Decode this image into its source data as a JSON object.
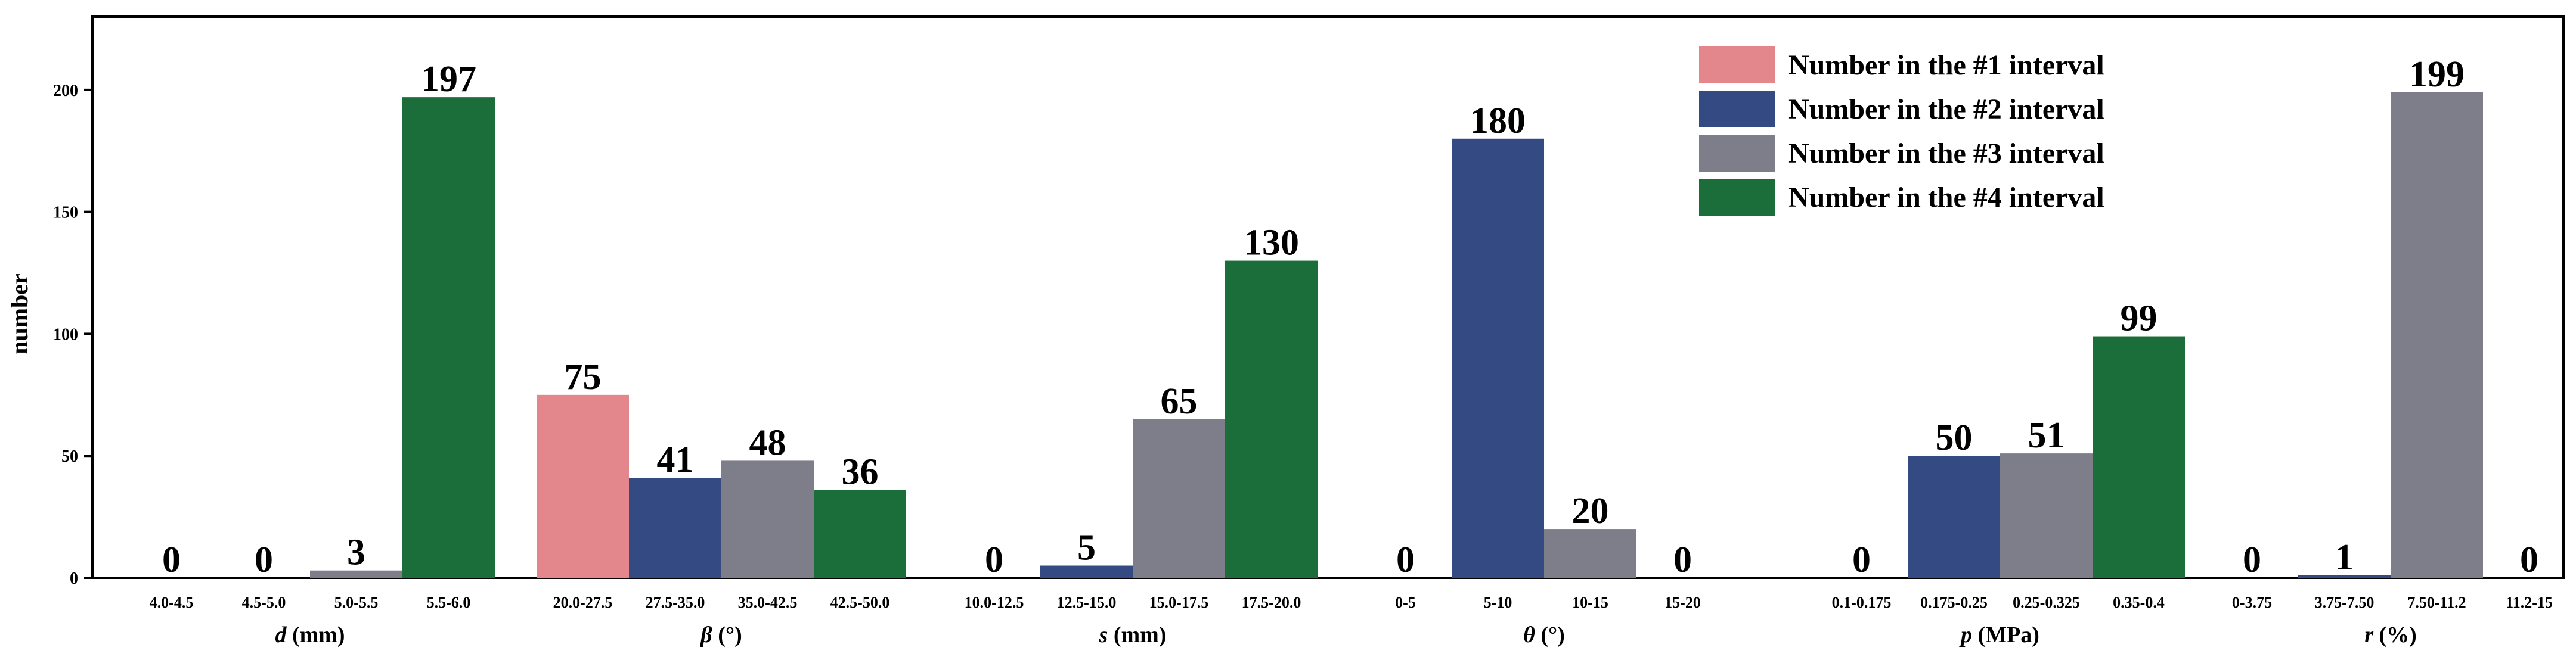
{
  "chart_data": {
    "type": "bar",
    "ylabel": "number",
    "ylim": [
      0,
      230
    ],
    "yticks": [
      0,
      50,
      100,
      150,
      200
    ],
    "grid": false,
    "legend_position": "top-right",
    "series": [
      {
        "name": "Number in the #1 interval",
        "color": "#e3878c"
      },
      {
        "name": "Number in the #2 interval",
        "color": "#344a82"
      },
      {
        "name": "Number in the #3 interval",
        "color": "#7e7e8a"
      },
      {
        "name": "Number in the #4 interval",
        "color": "#1b6e3a"
      }
    ],
    "groups": [
      {
        "label_var": "d",
        "label_unit": " (mm)",
        "bars": [
          {
            "category": "4.0-4.5",
            "value": 0,
            "series": 0
          },
          {
            "category": "4.5-5.0",
            "value": 0,
            "series": 1
          },
          {
            "category": "5.0-5.5",
            "value": 3,
            "series": 2
          },
          {
            "category": "5.5-6.0",
            "value": 197,
            "series": 3
          }
        ]
      },
      {
        "label_var": "β",
        "label_unit": " (°)",
        "bars": [
          {
            "category": "20.0-27.5",
            "value": 75,
            "series": 0
          },
          {
            "category": "27.5-35.0",
            "value": 41,
            "series": 1
          },
          {
            "category": "35.0-42.5",
            "value": 48,
            "series": 2
          },
          {
            "category": "42.5-50.0",
            "value": 36,
            "series": 3
          }
        ]
      },
      {
        "label_var": "s",
        "label_unit": " (mm)",
        "bars": [
          {
            "category": "10.0-12.5",
            "value": 0,
            "series": 0
          },
          {
            "category": "12.5-15.0",
            "value": 5,
            "series": 1
          },
          {
            "category": "15.0-17.5",
            "value": 65,
            "series": 2
          },
          {
            "category": "17.5-20.0",
            "value": 130,
            "series": 3
          }
        ]
      },
      {
        "label_var": "θ",
        "label_unit": " (°)",
        "bars": [
          {
            "category": "0-5",
            "value": 0,
            "series": 0
          },
          {
            "category": "5-10",
            "value": 180,
            "series": 1
          },
          {
            "category": "10-15",
            "value": 20,
            "series": 2
          },
          {
            "category": "15-20",
            "value": 0,
            "series": 3
          }
        ]
      },
      {
        "label_var": "p",
        "label_unit": " (MPa)",
        "bars": [
          {
            "category": "0.1-0.175",
            "value": 0,
            "series": 0
          },
          {
            "category": "0.175-0.25",
            "value": 50,
            "series": 1
          },
          {
            "category": "0.25-0.325",
            "value": 51,
            "series": 2
          },
          {
            "category": "0.35-0.4",
            "value": 99,
            "series": 3
          }
        ]
      },
      {
        "label_var": "r",
        "label_unit": " (%)",
        "bars": [
          {
            "category": "0-3.75",
            "value": 0,
            "series": 0
          },
          {
            "category": "3.75-7.50",
            "value": 1,
            "series": 1
          },
          {
            "category": "7.50-11.2",
            "value": 199,
            "series": 2
          },
          {
            "category": "11.2-15",
            "value": 0,
            "series": 3
          }
        ]
      }
    ]
  }
}
